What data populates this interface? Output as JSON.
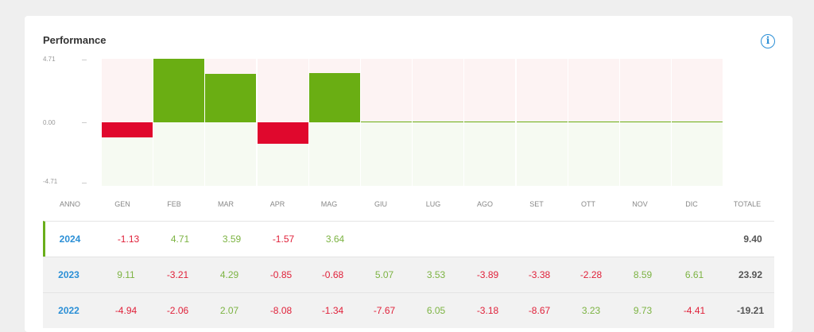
{
  "card": {
    "title": "Performance"
  },
  "chart_data": {
    "type": "bar",
    "categories": [
      "GEN",
      "FEB",
      "MAR",
      "APR",
      "MAG",
      "GIU",
      "LUG",
      "AGO",
      "SET",
      "OTT",
      "NOV",
      "DIC"
    ],
    "values": [
      -1.13,
      4.71,
      3.59,
      -1.57,
      3.64,
      0,
      0,
      0,
      0,
      0,
      0,
      0
    ],
    "yticks": [
      "4.71",
      "0.00",
      "-4.71"
    ],
    "ylim": [
      -4.71,
      4.71
    ],
    "colors": {
      "positive": "#6aae13",
      "negative": "#e0082d"
    }
  },
  "table": {
    "headers": [
      "ANNO",
      "GEN",
      "FEB",
      "MAR",
      "APR",
      "MAG",
      "GIU",
      "LUG",
      "AGO",
      "SET",
      "OTT",
      "NOV",
      "DIC",
      "TOTALE"
    ],
    "rows": [
      {
        "year": "2024",
        "values": [
          "-1.13",
          "4.71",
          "3.59",
          "-1.57",
          "3.64",
          "",
          "",
          "",
          "",
          "",
          "",
          ""
        ],
        "total": "9.40"
      },
      {
        "year": "2023",
        "values": [
          "9.11",
          "-3.21",
          "4.29",
          "-0.85",
          "-0.68",
          "5.07",
          "3.53",
          "-3.89",
          "-3.38",
          "-2.28",
          "8.59",
          "6.61"
        ],
        "total": "23.92"
      },
      {
        "year": "2022",
        "values": [
          "-4.94",
          "-2.06",
          "2.07",
          "-8.08",
          "-1.34",
          "-7.67",
          "6.05",
          "-3.18",
          "-8.67",
          "3.23",
          "9.73",
          "-4.41"
        ],
        "total": "-19.21"
      }
    ]
  }
}
